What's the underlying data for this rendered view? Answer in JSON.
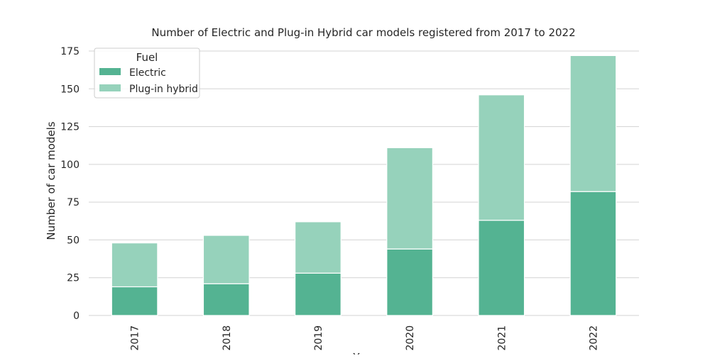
{
  "chart_data": {
    "type": "bar",
    "stacked": true,
    "title": "Number of Electric and Plug-in Hybrid car models registered from 2017 to 2022",
    "xlabel": "Y",
    "ylabel": "Number of car models",
    "categories": [
      "2017",
      "2018",
      "2019",
      "2020",
      "2021",
      "2022"
    ],
    "series": [
      {
        "name": "Electric",
        "color": "#54b392",
        "values": [
          19,
          21,
          28,
          44,
          63,
          82
        ]
      },
      {
        "name": "Plug-in hybrid",
        "color": "#96d2bb",
        "values": [
          29,
          32,
          34,
          67,
          83,
          90
        ]
      }
    ],
    "ylim": [
      0,
      175
    ],
    "yticks": [
      0,
      25,
      50,
      75,
      100,
      125,
      150,
      175
    ],
    "grid": true,
    "legend": {
      "title": "Fuel",
      "placement": "top-left"
    }
  }
}
